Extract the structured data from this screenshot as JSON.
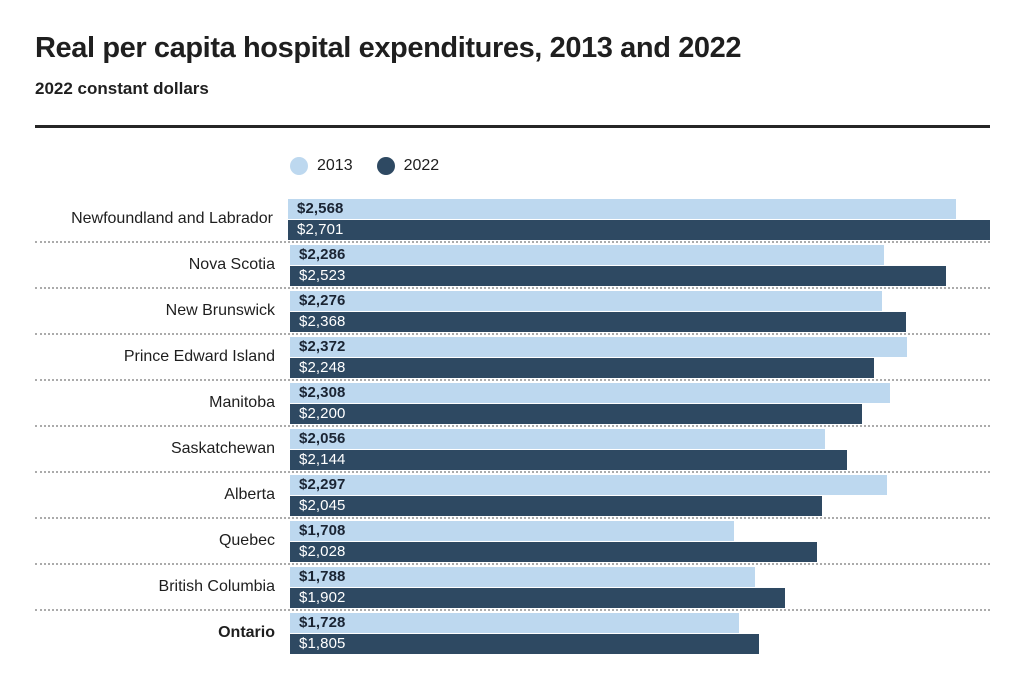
{
  "header": {
    "title": "Real per capita hospital expenditures, 2013 and 2022",
    "subtitle": "2022 constant dollars"
  },
  "colors": {
    "title_text": "#1F1F1F",
    "rule": "#262626",
    "separator_dots": "#ABABAB",
    "label_text": "#1E1E1E"
  },
  "chart_data": {
    "type": "bar",
    "orientation": "horizontal",
    "title": "Real per capita hospital expenditures, 2013 and 2022",
    "subtitle": "2022 constant dollars",
    "value_prefix": "$",
    "categories": [
      "Newfoundland and Labrador",
      "Nova Scotia",
      "New Brunswick",
      "Prince Edward Island",
      "Manitoba",
      "Saskatchewan",
      "Alberta",
      "Quebec",
      "British Columbia",
      "Ontario"
    ],
    "emphasized_category": "Ontario",
    "series": [
      {
        "name": "2013",
        "color": "#BDD8EF",
        "value_label_color": "#1A2433",
        "values": [
          2568,
          2286,
          2276,
          2372,
          2308,
          2056,
          2297,
          1708,
          1788,
          1728
        ]
      },
      {
        "name": "2022",
        "color": "#2E4962",
        "value_label_color": "#FFFFFF",
        "values": [
          2701,
          2523,
          2368,
          2248,
          2200,
          2144,
          2045,
          2028,
          1902,
          1805
        ]
      }
    ],
    "xlim": [
      0,
      2800
    ],
    "grid": false,
    "data_labels": true,
    "legend_position": "top"
  }
}
